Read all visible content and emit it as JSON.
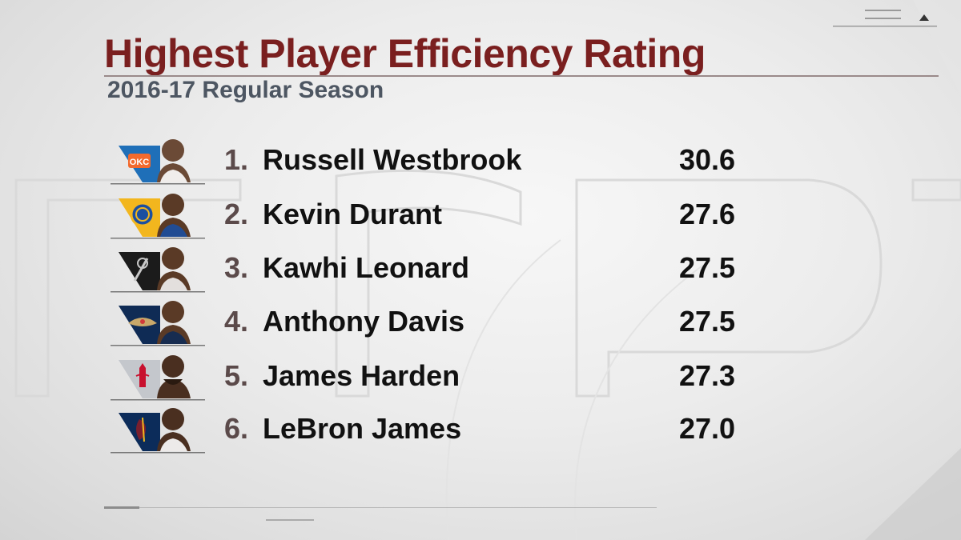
{
  "title": "Highest Player Efficiency Rating",
  "subtitle": "2016-17 Regular Season",
  "players": [
    {
      "rank": "1.",
      "name": "Russell Westbrook",
      "value": "30.6",
      "team_icon": "okc-thunder-logo-icon",
      "team_color": "#1f6fb8"
    },
    {
      "rank": "2.",
      "name": "Kevin Durant",
      "value": "27.6",
      "team_icon": "warriors-logo-icon",
      "team_color": "#f2b61e"
    },
    {
      "rank": "3.",
      "name": "Kawhi Leonard",
      "value": "27.5",
      "team_icon": "spurs-logo-icon",
      "team_color": "#1b1b1b"
    },
    {
      "rank": "4.",
      "name": "Anthony Davis",
      "value": "27.5",
      "team_icon": "pelicans-logo-icon",
      "team_color": "#0f2b55"
    },
    {
      "rank": "5.",
      "name": "James Harden",
      "value": "27.3",
      "team_icon": "rockets-logo-icon",
      "team_color": "#c4c7cc"
    },
    {
      "rank": "6.",
      "name": "LeBron James",
      "value": "27.0",
      "team_icon": "cavaliers-logo-icon",
      "team_color": "#0c2c5a"
    }
  ],
  "colors": {
    "title": "#7a1f1f",
    "subtitle": "#4d5662",
    "rank": "#5b4a4a",
    "text": "#111111"
  }
}
